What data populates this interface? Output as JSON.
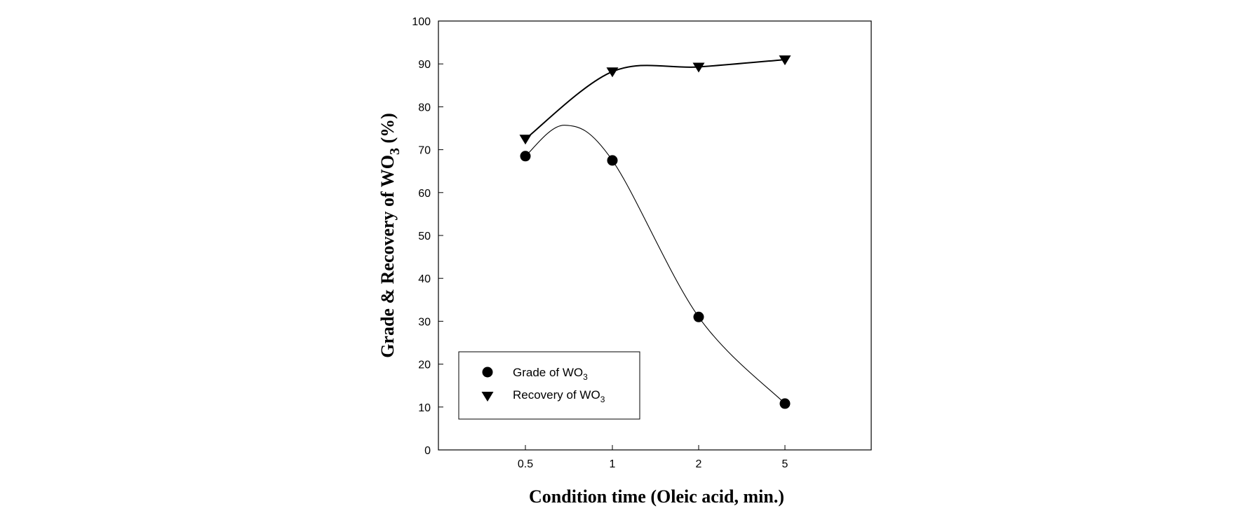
{
  "chart_data": {
    "type": "line",
    "x_axis": {
      "label": "Condition time  (Oleic acid, min.)",
      "scale": "categorical",
      "categories": [
        "0.5",
        "1",
        "2",
        "5"
      ]
    },
    "y_axis": {
      "label_main": "Grade & Recovery of WO",
      "label_sub": "3",
      "label_suffix": " (%)",
      "ylim": [
        0,
        100
      ],
      "ticks": [
        "0",
        "10",
        "20",
        "30",
        "40",
        "50",
        "60",
        "70",
        "80",
        "90",
        "100"
      ]
    },
    "series": [
      {
        "legend_main": "Grade of WO",
        "legend_sub": "3",
        "marker": "circle",
        "values": [
          68.5,
          67.5,
          31,
          10.8
        ],
        "curve_peak": {
          "x": "0.7",
          "y": 75.7
        }
      },
      {
        "legend_main": "Recovery of WO",
        "legend_sub": "3",
        "marker": "triangle-down",
        "values": [
          72.5,
          88.2,
          89.3,
          91
        ]
      }
    ],
    "legend": {
      "position": "bottom-left"
    },
    "grid": false,
    "colors": {
      "line": "#000000",
      "marker": "#000000",
      "background": "#ffffff"
    }
  }
}
